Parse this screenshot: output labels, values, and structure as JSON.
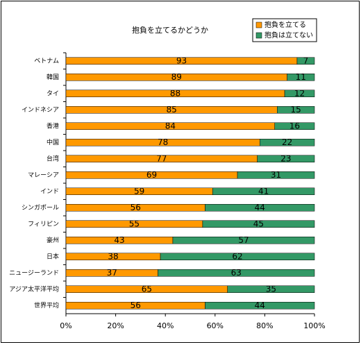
{
  "chart_data": {
    "type": "bar",
    "orientation": "horizontal",
    "stacked": true,
    "title": "抱負を立てるかどうか",
    "categories": [
      "ベトナム",
      "韓国",
      "タイ",
      "インドネシア",
      "香港",
      "中国",
      "台湾",
      "マレーシア",
      "インド",
      "シンガポール",
      "フィリピン",
      "豪州",
      "日本",
      "ニュージーランド",
      "アジア太平洋平均",
      "世界平均"
    ],
    "series": [
      {
        "name": "抱負を立てる",
        "color": "#ff9900",
        "values": [
          93,
          89,
          88,
          85,
          84,
          78,
          77,
          69,
          59,
          56,
          55,
          43,
          38,
          37,
          65,
          56
        ]
      },
      {
        "name": "抱負は立てない",
        "color": "#339966",
        "values": [
          7,
          11,
          12,
          15,
          16,
          22,
          23,
          31,
          41,
          44,
          45,
          57,
          62,
          63,
          35,
          44
        ]
      }
    ],
    "xlim": [
      0,
      100
    ],
    "xticks": [
      {
        "value": 0,
        "label": "0%"
      },
      {
        "value": 20,
        "label": "20%"
      },
      {
        "value": 40,
        "label": "40%"
      },
      {
        "value": 60,
        "label": "60%"
      },
      {
        "value": 80,
        "label": "80%"
      },
      {
        "value": 100,
        "label": "100%"
      }
    ],
    "legend": "top-right"
  }
}
